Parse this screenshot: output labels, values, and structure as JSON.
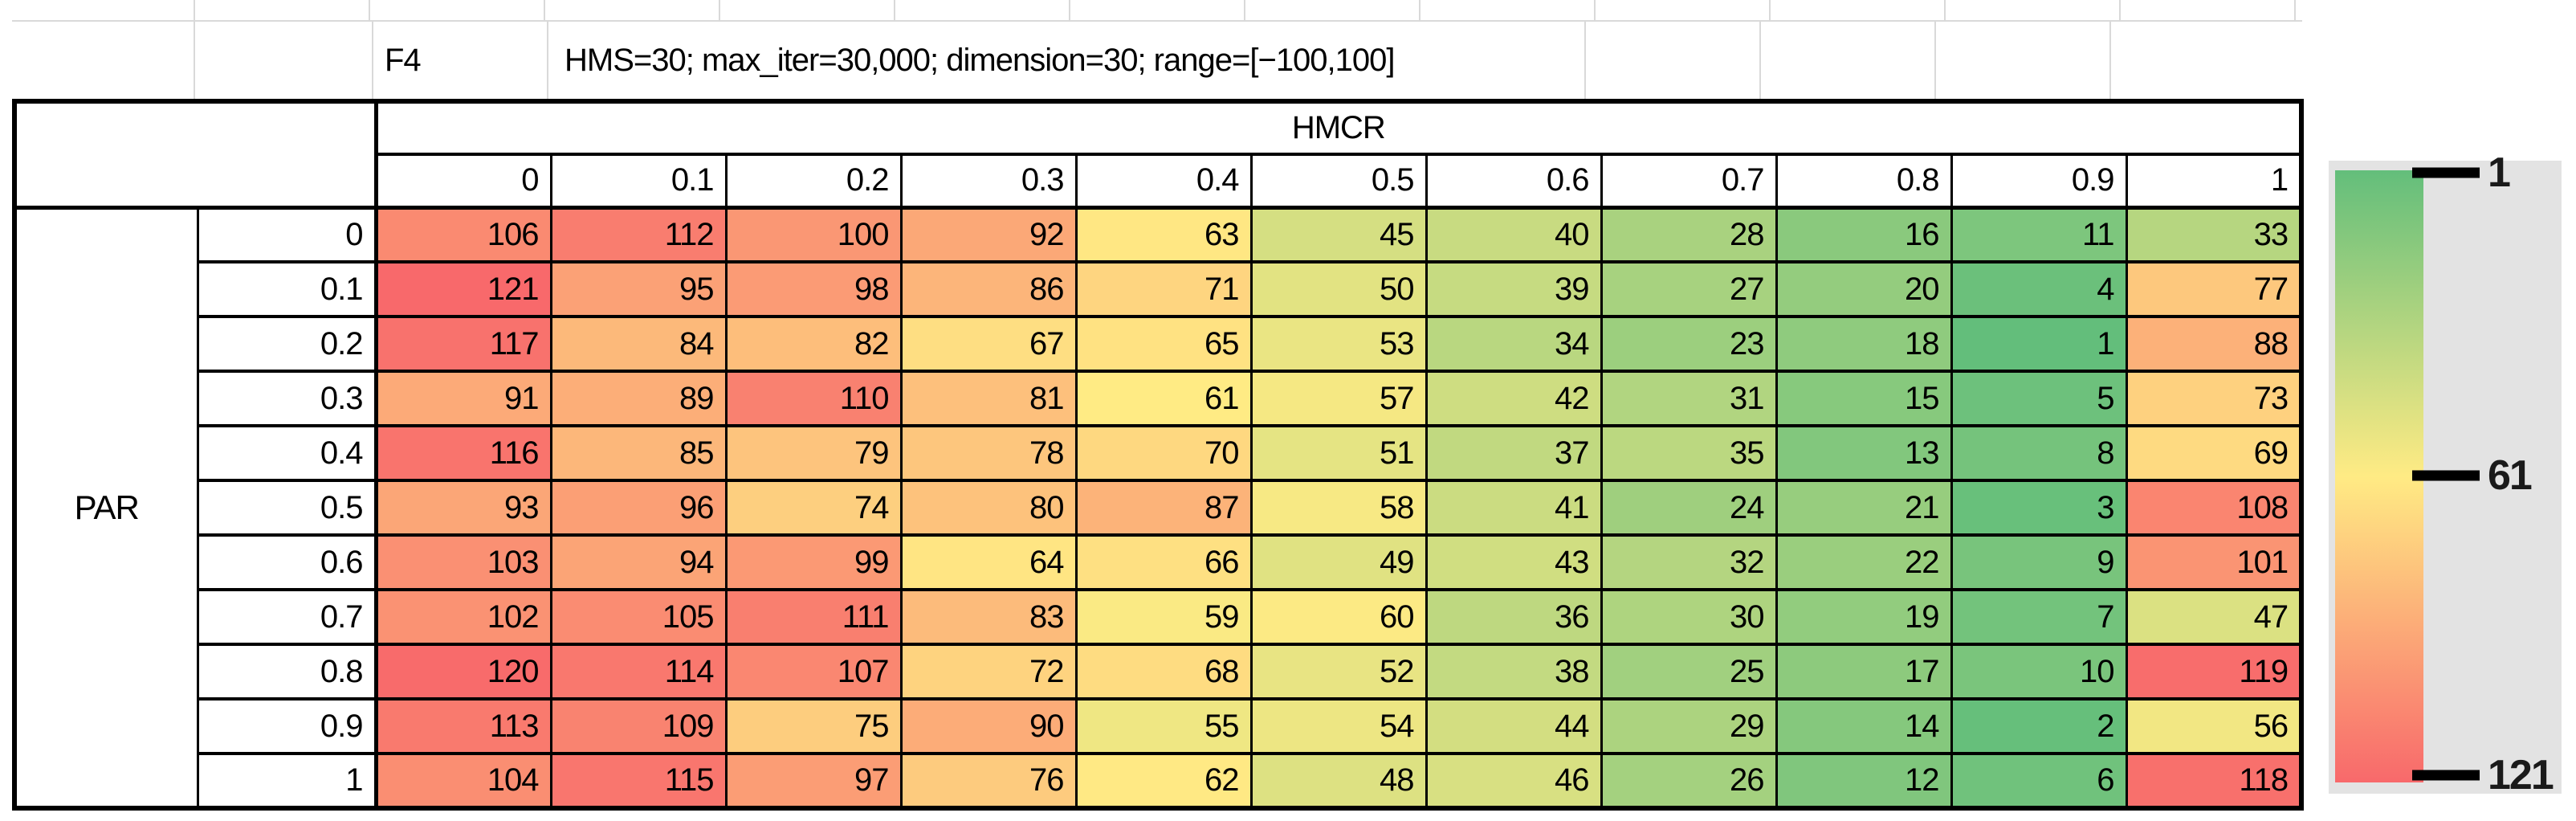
{
  "header": {
    "function_label": "F4",
    "settings": "HMS=30; max_iter=30,000; dimension=30; range=[−100,100]"
  },
  "table": {
    "col_group_label": "HMCR",
    "row_group_label": "PAR"
  },
  "legend": {
    "ticks": [
      "1",
      "61",
      "121"
    ]
  },
  "colors": {
    "scale_min": "#63BE7B",
    "scale_mid": "#FFEB84",
    "scale_max": "#F8696B",
    "legend_bg": "#E3E3E3",
    "gridline": "#D9D9D9",
    "border": "#000000"
  },
  "chart_data": {
    "type": "heatmap",
    "title": "F4",
    "subtitle": "HMS=30; max_iter=30,000; dimension=30; range=[−100,100]",
    "x_label": "HMCR",
    "y_label": "PAR",
    "x_ticks": [
      "0",
      "0.1",
      "0.2",
      "0.3",
      "0.4",
      "0.5",
      "0.6",
      "0.7",
      "0.8",
      "0.9",
      "1"
    ],
    "y_ticks": [
      "0",
      "0.1",
      "0.2",
      "0.3",
      "0.4",
      "0.5",
      "0.6",
      "0.7",
      "0.8",
      "0.9",
      "1"
    ],
    "values": [
      [
        106,
        112,
        100,
        92,
        63,
        45,
        40,
        28,
        16,
        11,
        33
      ],
      [
        121,
        95,
        98,
        86,
        71,
        50,
        39,
        27,
        20,
        4,
        77
      ],
      [
        117,
        84,
        82,
        67,
        65,
        53,
        34,
        23,
        18,
        1,
        88
      ],
      [
        91,
        89,
        110,
        81,
        61,
        57,
        42,
        31,
        15,
        5,
        73
      ],
      [
        116,
        85,
        79,
        78,
        70,
        51,
        37,
        35,
        13,
        8,
        69
      ],
      [
        93,
        96,
        74,
        80,
        87,
        58,
        41,
        24,
        21,
        3,
        108
      ],
      [
        103,
        94,
        99,
        64,
        66,
        49,
        43,
        32,
        22,
        9,
        101
      ],
      [
        102,
        105,
        111,
        83,
        59,
        60,
        36,
        30,
        19,
        7,
        47
      ],
      [
        120,
        114,
        107,
        72,
        68,
        52,
        38,
        25,
        17,
        10,
        119
      ],
      [
        113,
        109,
        75,
        90,
        55,
        54,
        44,
        29,
        14,
        2,
        56
      ],
      [
        104,
        115,
        97,
        76,
        62,
        48,
        46,
        26,
        12,
        6,
        118
      ]
    ],
    "value_range": [
      1,
      121
    ],
    "color_scale": {
      "min": {
        "value": 1,
        "color": "#63BE7B"
      },
      "mid": {
        "value": 61,
        "color": "#FFEB84"
      },
      "max": {
        "value": 121,
        "color": "#F8696B"
      }
    },
    "legend_ticks": [
      1,
      61,
      121
    ],
    "legend_position": "right"
  }
}
